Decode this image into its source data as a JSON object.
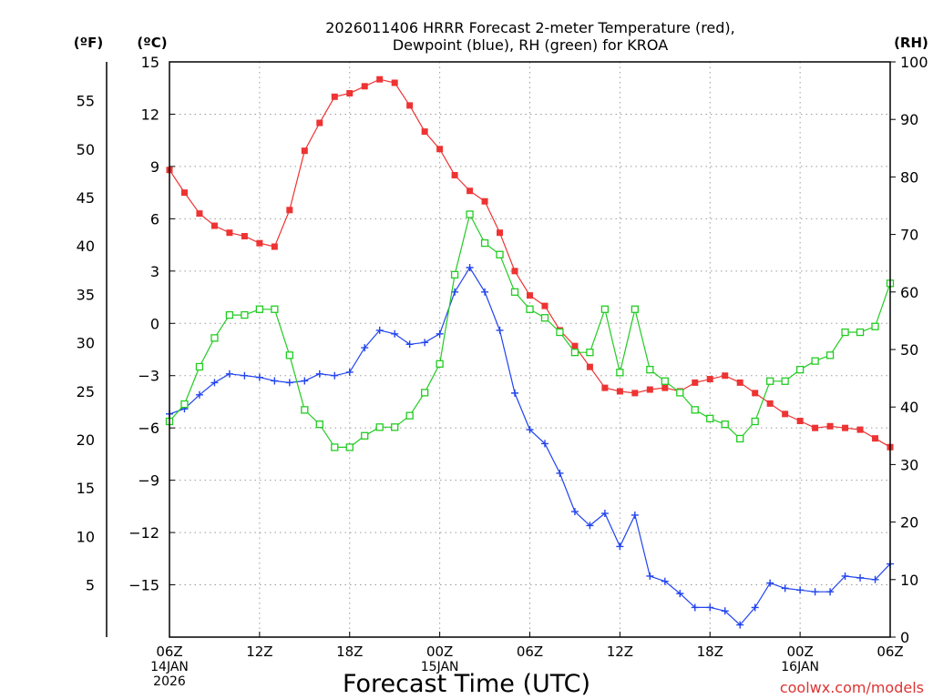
{
  "chart_data": {
    "type": "line",
    "title": [
      "2026011406 HRRR Forecast 2-meter Temperature (red),",
      "Dewpoint (blue), RH (green) for KROA"
    ],
    "xlabel": "Forecast Time (UTC)",
    "unit_labels": {
      "fahrenheit": "(ºF)",
      "celsius": "(ºC)",
      "rh": "(RH)"
    },
    "x_hours": [
      0,
      1,
      2,
      3,
      4,
      5,
      6,
      7,
      8,
      9,
      10,
      11,
      12,
      13,
      14,
      15,
      16,
      17,
      18,
      19,
      20,
      21,
      22,
      23,
      24,
      25,
      26,
      27,
      28,
      29,
      30,
      31,
      32,
      33,
      34,
      35,
      36,
      37,
      38,
      39,
      40,
      41,
      42,
      43,
      44,
      45,
      46,
      47,
      48
    ],
    "xlim": [
      0,
      48
    ],
    "x_ticks": [
      {
        "hour": 0,
        "label": "06Z",
        "sub": [
          "14JAN",
          "2026"
        ]
      },
      {
        "hour": 6,
        "label": "12Z",
        "sub": []
      },
      {
        "hour": 12,
        "label": "18Z",
        "sub": []
      },
      {
        "hour": 18,
        "label": "00Z",
        "sub": [
          "15JAN"
        ]
      },
      {
        "hour": 24,
        "label": "06Z",
        "sub": []
      },
      {
        "hour": 30,
        "label": "12Z",
        "sub": []
      },
      {
        "hour": 36,
        "label": "18Z",
        "sub": []
      },
      {
        "hour": 42,
        "label": "00Z",
        "sub": [
          "16JAN"
        ]
      },
      {
        "hour": 48,
        "label": "06Z",
        "sub": []
      }
    ],
    "ylim_celsius": [
      -18,
      15
    ],
    "y_ticks_celsius": [
      "15",
      "12",
      "9",
      "6",
      "3",
      "0",
      "−3",
      "−6",
      "−9",
      "−12",
      "−15"
    ],
    "y_ticks_celsius_values": [
      15,
      12,
      9,
      6,
      3,
      0,
      -3,
      -6,
      -9,
      -12,
      -15
    ],
    "y_ticks_fahrenheit": [
      "55",
      "50",
      "45",
      "40",
      "35",
      "30",
      "25",
      "20",
      "15",
      "10",
      "5"
    ],
    "y_ticks_fahrenheit_values": [
      55,
      50,
      45,
      40,
      35,
      30,
      25,
      20,
      15,
      10,
      5
    ],
    "ylim_rh": [
      0,
      100
    ],
    "y_ticks_rh": [
      "100",
      "90",
      "80",
      "70",
      "60",
      "50",
      "40",
      "30",
      "20",
      "10",
      "0"
    ],
    "y_ticks_rh_values": [
      100,
      90,
      80,
      70,
      60,
      50,
      40,
      30,
      20,
      10,
      0
    ],
    "series": [
      {
        "name": "Temperature",
        "axis": "celsius",
        "color": "#ee3333",
        "marker": "filled-square",
        "values": [
          8.8,
          7.5,
          6.3,
          5.6,
          5.2,
          5.0,
          4.6,
          4.4,
          6.5,
          9.9,
          11.5,
          13.0,
          13.2,
          13.6,
          14.0,
          13.8,
          12.5,
          11.0,
          10.0,
          8.5,
          7.6,
          7.0,
          5.2,
          3.0,
          1.6,
          1.0,
          -0.4,
          -1.3,
          -2.5,
          -3.7,
          -3.9,
          -4.0,
          -3.8,
          -3.7,
          -3.9,
          -3.4,
          -3.2,
          -3.0,
          -3.4,
          -4.0,
          -4.6,
          -5.2,
          -5.6,
          -6.0,
          -5.9,
          -6.0,
          -6.1,
          -6.6,
          -7.1
        ]
      },
      {
        "name": "Dewpoint",
        "axis": "celsius",
        "color": "#2244ee",
        "marker": "plus",
        "values": [
          -5.2,
          -4.9,
          -4.1,
          -3.4,
          -2.9,
          -3.0,
          -3.1,
          -3.3,
          -3.4,
          -3.3,
          -2.9,
          -3.0,
          -2.8,
          -1.4,
          -0.4,
          -0.6,
          -1.2,
          -1.1,
          -0.6,
          1.8,
          3.2,
          1.8,
          -0.4,
          -4.0,
          -6.1,
          -6.9,
          -8.6,
          -10.8,
          -11.6,
          -10.9,
          -12.8,
          -11.0,
          -14.5,
          -14.8,
          -15.5,
          -16.3,
          -16.3,
          -16.5,
          -17.3,
          -16.3,
          -14.9,
          -15.2,
          -15.3,
          -15.4,
          -15.4,
          -14.5,
          -14.6,
          -14.7,
          -13.8
        ]
      },
      {
        "name": "RH",
        "axis": "rh",
        "color": "#22cc22",
        "marker": "open-square",
        "values": [
          37.5,
          40.5,
          47,
          52,
          56,
          56,
          57,
          57,
          49,
          39.5,
          37,
          33,
          33,
          35,
          36.5,
          36.5,
          38.5,
          42.5,
          47.5,
          63,
          73.5,
          68.5,
          66.5,
          60,
          57,
          55.5,
          53,
          49.5,
          49.5,
          57,
          46,
          57,
          46.5,
          44.5,
          42.5,
          39.5,
          38,
          37,
          34.5,
          37.5,
          44.5,
          44.5,
          46.5,
          48,
          49,
          53,
          53,
          54,
          61.5
        ]
      }
    ],
    "grid": true,
    "watermark": "coolwx.com/models"
  }
}
